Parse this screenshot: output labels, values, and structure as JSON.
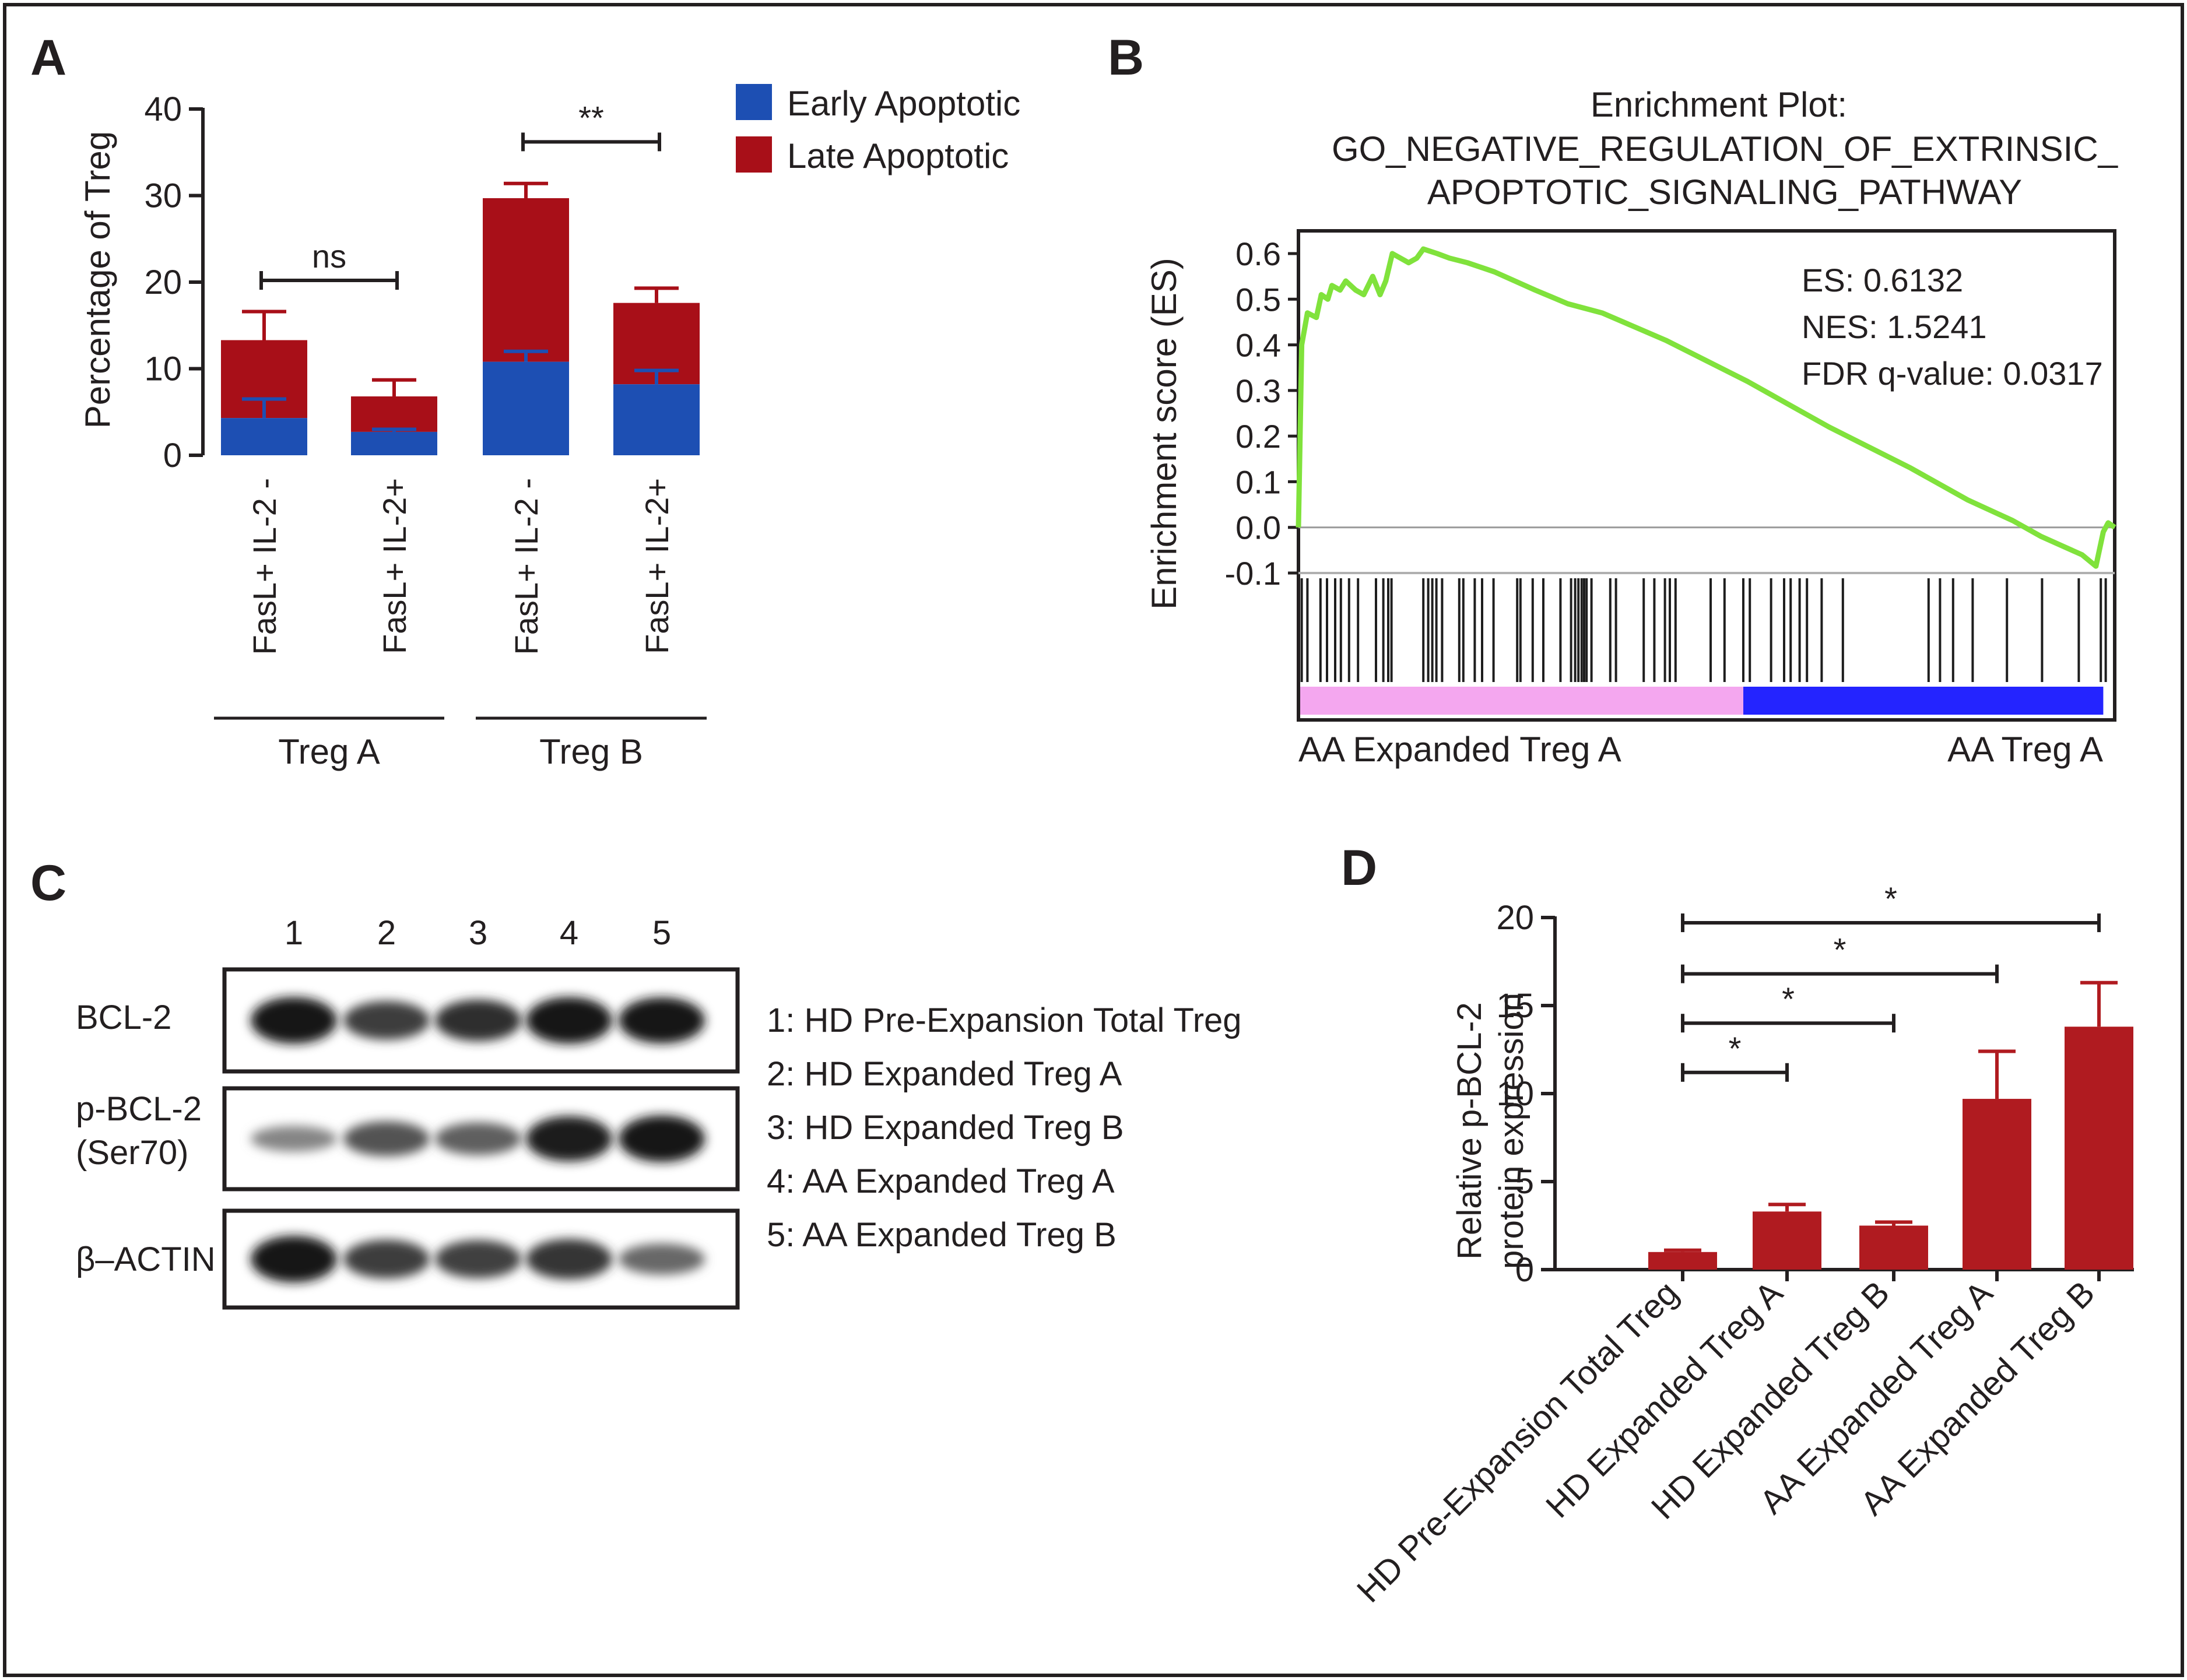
{
  "panels": {
    "a": "A",
    "b": "B",
    "c": "C",
    "d": "D"
  },
  "colors": {
    "early": "#1d4fb3",
    "late": "#a80f18",
    "curve": "#80e23c",
    "pink": "#f4a7ef",
    "blue": "#2424ff",
    "bar_d": "#b01b20",
    "ink": "#231f20"
  },
  "chart_data": [
    {
      "panel": "A",
      "type": "bar",
      "stacked": true,
      "ylabel": "Percentage of Treg",
      "ylim": [
        0,
        40
      ],
      "yticks": [
        0,
        10,
        20,
        30,
        40
      ],
      "categories": [
        "FasL+ IL-2 -",
        "FasL+ IL-2+",
        "FasL+ IL-2 -",
        "FasL+ IL-2+"
      ],
      "series": [
        {
          "name": "Early Apoptotic",
          "values": [
            4.3,
            2.7,
            10.8,
            8.2
          ],
          "errors": [
            2.2,
            0.3,
            1.2,
            1.6
          ]
        },
        {
          "name": "Late Apoptotic",
          "values": [
            9.0,
            4.1,
            18.9,
            9.4
          ],
          "errors": [
            3.3,
            1.9,
            1.7,
            1.7
          ]
        }
      ],
      "groups": [
        {
          "label": "Treg A",
          "from": 0,
          "to": 1
        },
        {
          "label": "Treg B",
          "from": 2,
          "to": 3
        }
      ],
      "significance": [
        {
          "from": 0,
          "to": 1,
          "label": "ns",
          "y": 20.2
        },
        {
          "from": 2,
          "to": 3,
          "label": "**",
          "y": 36.2
        }
      ]
    },
    {
      "panel": "B",
      "type": "line",
      "title": "Enrichment Plot:",
      "title_lines": [
        "GO_NEGATIVE_REGULATION_OF_EXTRINSIC_",
        "APOPTOTIC_SIGNALING_PATHWAY"
      ],
      "ylabel": "Enrichment score (ES)",
      "ylim": [
        -0.1,
        0.6
      ],
      "yticks": [
        -0.1,
        0.0,
        0.1,
        0.2,
        0.3,
        0.4,
        0.5,
        0.6
      ],
      "ytick_labels": [
        "-0.1",
        "0.0",
        "0.1",
        "0.2",
        "0.3",
        "0.4",
        "0.5",
        "0.6"
      ],
      "stats": [
        "ES: 0.6132",
        "NES: 1.5241",
        "FDR q-value: 0.0317"
      ],
      "x_left_label": "AA Expanded Treg A",
      "x_right_label": "AA Treg A",
      "curve": [
        [
          0,
          0.0
        ],
        [
          0.4,
          0.4
        ],
        [
          1.1,
          0.47
        ],
        [
          2.2,
          0.46
        ],
        [
          2.8,
          0.51
        ],
        [
          3.6,
          0.5
        ],
        [
          4.1,
          0.53
        ],
        [
          5.1,
          0.52
        ],
        [
          5.8,
          0.54
        ],
        [
          7.0,
          0.52
        ],
        [
          8.0,
          0.51
        ],
        [
          9.1,
          0.55
        ],
        [
          10.0,
          0.51
        ],
        [
          10.7,
          0.54
        ],
        [
          11.5,
          0.6
        ],
        [
          13.5,
          0.58
        ],
        [
          14.5,
          0.59
        ],
        [
          15.3,
          0.61
        ],
        [
          17.0,
          0.6
        ],
        [
          18.5,
          0.59
        ],
        [
          20.7,
          0.58
        ],
        [
          24.0,
          0.56
        ],
        [
          29.0,
          0.52
        ],
        [
          33.0,
          0.49
        ],
        [
          37.2,
          0.47
        ],
        [
          45.0,
          0.41
        ],
        [
          55.0,
          0.32
        ],
        [
          65.0,
          0.22
        ],
        [
          75.0,
          0.13
        ],
        [
          82.0,
          0.06
        ],
        [
          87.5,
          0.015
        ],
        [
          91.0,
          -0.02
        ],
        [
          96.0,
          -0.06
        ],
        [
          97.7,
          -0.085
        ],
        [
          98.6,
          -0.01
        ],
        [
          99.2,
          0.01
        ],
        [
          100,
          0.0
        ]
      ],
      "hits": [
        0.4,
        1.1,
        2.7,
        3.5,
        4.5,
        5.2,
        6.2,
        7.3,
        9.5,
        10.4,
        11.0,
        11.4,
        15.3,
        15.9,
        16.4,
        16.9,
        17.6,
        19.7,
        20.2,
        21.6,
        22.5,
        23.9,
        26.8,
        27.2,
        28.7,
        30.0,
        32.1,
        33.4,
        33.9,
        34.3,
        34.7,
        35.0,
        35.3,
        35.9,
        38.2,
        38.9,
        42.3,
        43.6,
        44.9,
        45.5,
        46.2,
        50.5,
        52.2,
        54.5,
        55.3,
        57.9,
        59.5,
        60.3,
        61.4,
        62.3,
        64.1,
        66.7,
        77.2,
        78.6,
        80.2,
        82.6,
        86.8,
        91.1,
        95.6,
        98.3,
        98.9
      ],
      "split": 54.5
    },
    {
      "panel": "C",
      "type": "other",
      "lane_labels": [
        "1",
        "2",
        "3",
        "4",
        "5"
      ],
      "rows": [
        {
          "label_lines": [
            "BCL-2"
          ],
          "intensity": [
            1.0,
            0.72,
            0.82,
            1.0,
            0.98
          ]
        },
        {
          "label_lines": [
            "p-BCL-2",
            "(Ser70)"
          ],
          "intensity": [
            0.25,
            0.58,
            0.5,
            0.95,
            1.0
          ]
        },
        {
          "label_lines": [
            "β–ACTIN"
          ],
          "intensity": [
            1.0,
            0.72,
            0.7,
            0.78,
            0.45
          ]
        }
      ],
      "legend": [
        "1: HD Pre-Expansion Total Treg",
        "2: HD Expanded Treg A",
        "3: HD Expanded Treg B",
        "4: AA Expanded Treg A",
        "5: AA Expanded Treg B"
      ]
    },
    {
      "panel": "D",
      "type": "bar",
      "ylabel_lines": [
        "Relative p-BCL-2",
        "protein expression"
      ],
      "ylim": [
        0,
        20
      ],
      "yticks": [
        0,
        5,
        10,
        15,
        20
      ],
      "categories": [
        "HD Pre-Expansion Total Treg",
        "HD Expanded Treg A",
        "HD Expanded Treg B",
        "AA Expanded Treg A",
        "AA Expanded Treg B"
      ],
      "values": [
        1.0,
        3.3,
        2.5,
        9.7,
        13.8
      ],
      "errors": [
        0.1,
        0.4,
        0.2,
        2.7,
        2.5
      ],
      "significance": [
        {
          "from": 0,
          "to": 4,
          "label": "*",
          "y": 19.7
        },
        {
          "from": 0,
          "to": 3,
          "label": "*",
          "y": 16.8
        },
        {
          "from": 0,
          "to": 2,
          "label": "*",
          "y": 14.0
        },
        {
          "from": 0,
          "to": 1,
          "label": "*",
          "y": 11.2
        }
      ]
    }
  ]
}
